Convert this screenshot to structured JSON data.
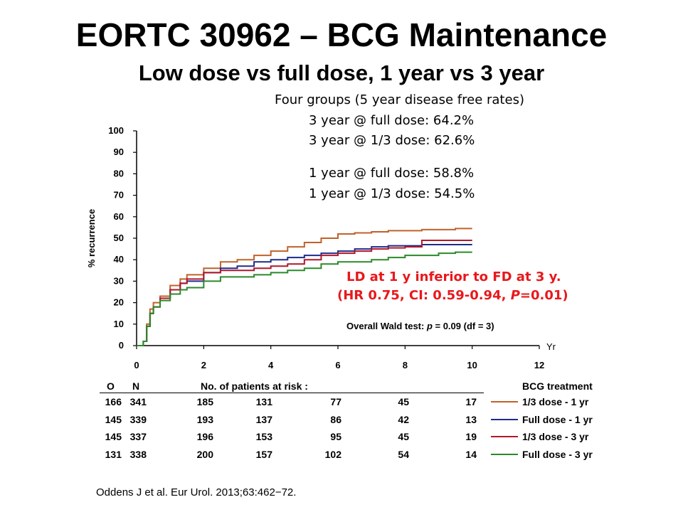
{
  "slide": {
    "title": "EORTC 30962 – BCG Maintenance",
    "subtitle": "Low dose vs full dose, 1 year vs 3 year",
    "summary_header": "Four groups (5 year disease free rates)",
    "summary_lines": [
      "3 year @ full dose: 64.2%",
      "3 year @ 1/3 dose: 62.6%",
      "1 year @ full dose: 58.8%",
      "1 year @ 1/3 dose: 54.5%"
    ],
    "finding_line1": "LD at 1 y inferior to FD at 3 y.",
    "finding_line2": "(HR 0.75, CI: 0.59-0.94, P=0.01)",
    "wald_test": "Overall Wald test: p = 0.09 (df = 3)",
    "citation": "Oddens J et al. Eur Urol. 2013;63:462−72."
  },
  "chart_data": {
    "type": "line",
    "xlabel": "Yr",
    "ylabel": "% recurrence",
    "xlim": [
      0,
      12
    ],
    "ylim": [
      0,
      100
    ],
    "xticks": [
      0,
      2,
      4,
      6,
      8,
      10,
      12
    ],
    "yticks": [
      0,
      10,
      20,
      30,
      40,
      50,
      60,
      70,
      80,
      90,
      100
    ],
    "series": [
      {
        "name": "1/3 dose - 1 yr",
        "color": "#c0622a",
        "x": [
          0,
          0.2,
          0.3,
          0.4,
          0.5,
          0.7,
          1.0,
          1.3,
          1.5,
          2.0,
          2.5,
          3.0,
          3.5,
          4.0,
          4.5,
          5.0,
          5.5,
          6.0,
          6.5,
          7.0,
          7.5,
          8.0,
          8.5,
          9.0,
          9.5,
          10.0
        ],
        "y": [
          0,
          2,
          10,
          17,
          20,
          23,
          28,
          31,
          33,
          36,
          39,
          40,
          42,
          44,
          46,
          48,
          50,
          52,
          52.5,
          53,
          53.5,
          53.5,
          54,
          54,
          54.5,
          54.5
        ]
      },
      {
        "name": "Full dose - 1 yr",
        "color": "#1f2a8a",
        "x": [
          0,
          0.2,
          0.3,
          0.4,
          0.5,
          0.7,
          1.0,
          1.3,
          1.5,
          2.0,
          2.5,
          3.0,
          3.5,
          4.0,
          4.5,
          5.0,
          5.5,
          6.0,
          6.5,
          7.0,
          7.5,
          8.0,
          8.5,
          9.0,
          9.5,
          10.0
        ],
        "y": [
          0,
          2,
          9,
          15,
          18,
          22,
          26,
          29,
          30,
          34,
          36,
          37,
          39,
          40,
          41,
          42,
          43,
          44,
          45,
          46,
          46.5,
          46.5,
          47,
          47,
          47,
          47
        ]
      },
      {
        "name": "1/3 dose - 3 yr",
        "color": "#b0182a",
        "x": [
          0,
          0.2,
          0.3,
          0.4,
          0.5,
          0.7,
          1.0,
          1.3,
          1.5,
          2.0,
          2.5,
          3.0,
          3.5,
          4.0,
          4.5,
          5.0,
          5.5,
          6.0,
          6.5,
          7.0,
          7.5,
          8.0,
          8.5,
          9.0,
          9.5,
          10.0
        ],
        "y": [
          0,
          2,
          9,
          15,
          18,
          22,
          26,
          29,
          31,
          34,
          35,
          35,
          36,
          37,
          38,
          40,
          42,
          43,
          44,
          45,
          45.5,
          46,
          49,
          49,
          49,
          49
        ]
      },
      {
        "name": "Full dose - 3 yr",
        "color": "#2a8a2a",
        "x": [
          0,
          0.2,
          0.3,
          0.4,
          0.5,
          0.7,
          1.0,
          1.3,
          1.5,
          2.0,
          2.5,
          3.0,
          3.5,
          4.0,
          4.5,
          5.0,
          5.5,
          6.0,
          6.5,
          7.0,
          7.5,
          8.0,
          8.5,
          9.0,
          9.5,
          10.0
        ],
        "y": [
          0,
          2,
          9,
          15,
          18,
          21,
          24,
          26,
          27,
          30,
          32,
          32,
          33,
          34,
          35,
          36,
          38,
          39,
          39,
          40,
          41,
          42,
          42,
          43,
          43.5,
          43.5
        ]
      }
    ],
    "risk_table": {
      "header_o": "O",
      "header_n": "N",
      "header": "No. of patients at risk :",
      "legend_title": "BCG treatment",
      "time_points": [
        2,
        4,
        6,
        8,
        10
      ],
      "rows": [
        {
          "o": "166",
          "n": "341",
          "values": [
            "185",
            "131",
            "77",
            "45",
            "17"
          ],
          "label": "1/3 dose - 1 yr",
          "color": "#c0622a"
        },
        {
          "o": "145",
          "n": "339",
          "values": [
            "193",
            "137",
            "86",
            "42",
            "13"
          ],
          "label": "Full dose - 1 yr",
          "color": "#1f2a8a"
        },
        {
          "o": "145",
          "n": "337",
          "values": [
            "196",
            "153",
            "95",
            "45",
            "19"
          ],
          "label": "1/3 dose - 3 yr",
          "color": "#b0182a"
        },
        {
          "o": "131",
          "n": "338",
          "values": [
            "200",
            "157",
            "102",
            "54",
            "14"
          ],
          "label": "Full dose - 3 yr",
          "color": "#2a8a2a"
        }
      ]
    }
  }
}
